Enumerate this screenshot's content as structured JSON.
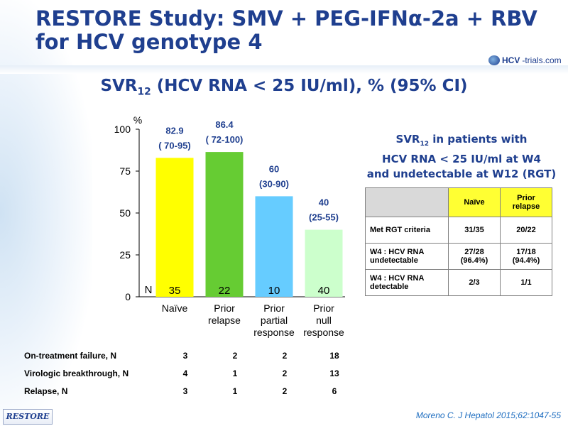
{
  "slide": {
    "title_line1": "RESTORE Study: SMV + PEG-IFNα-2a + RBV",
    "title_line2": "for HCV genotype 4",
    "logo_text_a": "HCV",
    "logo_text_b": "-trials.com",
    "subtitle_pre": "SVR",
    "subtitle_sub": "12",
    "subtitle_post": " (HCV RNA < 25 IU/ml), % (95% CI)",
    "footer_badge": "RESTORE",
    "citation": "Moreno C. J Hepatol 2015;62:1047-55",
    "colors": {
      "title": "#1f3f8f",
      "bar_naive": "#ffff00",
      "bar_prior_relapse": "#66cc33",
      "bar_prior_partial": "#66ccff",
      "bar_prior_null": "#ccffcc"
    }
  },
  "chart_data": {
    "type": "bar",
    "y_unit_label": "%",
    "ylim": [
      0,
      100
    ],
    "yticks": [
      "0",
      "25",
      "50",
      "75",
      "100"
    ],
    "n_label": "N",
    "categories": [
      {
        "label_lines": [
          "Naïve"
        ],
        "value": 82.9,
        "value_label": "82.9",
        "ci_label": "( 70-95)",
        "n": "35",
        "color": "#ffff00"
      },
      {
        "label_lines": [
          "Prior",
          "relapse"
        ],
        "value": 86.4,
        "value_label": "86.4",
        "ci_label": "( 72-100)",
        "n": "22",
        "color": "#66cc33"
      },
      {
        "label_lines": [
          "Prior",
          "partial",
          "response"
        ],
        "value": 60,
        "value_label": "60",
        "ci_label": "(30-90)",
        "n": "10",
        "color": "#66ccff"
      },
      {
        "label_lines": [
          "Prior",
          "null",
          "response"
        ],
        "value": 40,
        "value_label": "40",
        "ci_label": "(25-55)",
        "n": "40",
        "color": "#ccffcc"
      }
    ]
  },
  "outcomes_table": [
    {
      "label": "On-treatment failure, N",
      "values": [
        "3",
        "2",
        "2",
        "18"
      ]
    },
    {
      "label": "Virologic breakthrough, N",
      "values": [
        "4",
        "1",
        "2",
        "13"
      ]
    },
    {
      "label": "Relapse, N",
      "values": [
        "3",
        "1",
        "2",
        "6"
      ]
    }
  ],
  "rgt_panel": {
    "title_pre": "SVR",
    "title_sub": "12",
    "title_line1_post": " in patients with",
    "title_line2": "HCV RNA < 25 IU/ml at W4",
    "title_line3": "and undetectable at W12 (RGT)",
    "headers": [
      "",
      "Naïve",
      "Prior relapse"
    ],
    "rows": [
      {
        "label": "Met RGT criteria",
        "naive": "31/35",
        "prior_relapse": "20/22"
      },
      {
        "label": "W4 : HCV RNA undetectable",
        "naive": "27/28 (96.4%)",
        "prior_relapse": "17/18 (94.4%)"
      },
      {
        "label": "W4 : HCV RNA detectable",
        "naive": "2/3",
        "prior_relapse": "1/1"
      }
    ]
  }
}
